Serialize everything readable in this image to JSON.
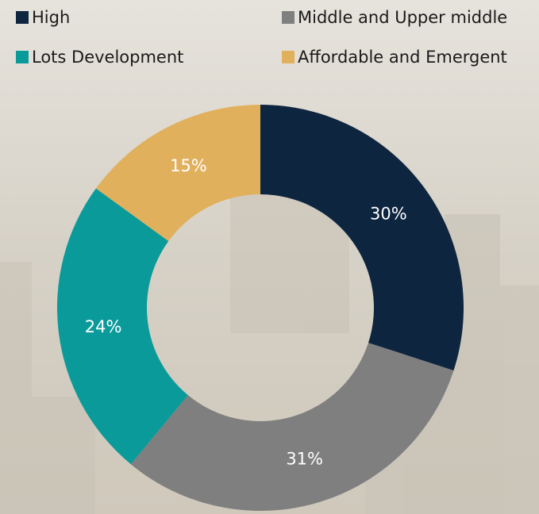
{
  "chart_data": {
    "type": "pie",
    "categories": [
      "High",
      "Middle and Upper middle",
      "Lots Development",
      "Affordable and Emergent"
    ],
    "values": [
      30,
      31,
      24,
      15
    ],
    "value_labels": [
      "30%",
      "31%",
      "24%",
      "15%"
    ],
    "colors": [
      "#0e2540",
      "#7f7f7f",
      "#0b9a9a",
      "#e1b05d"
    ],
    "donut": true
  }
}
